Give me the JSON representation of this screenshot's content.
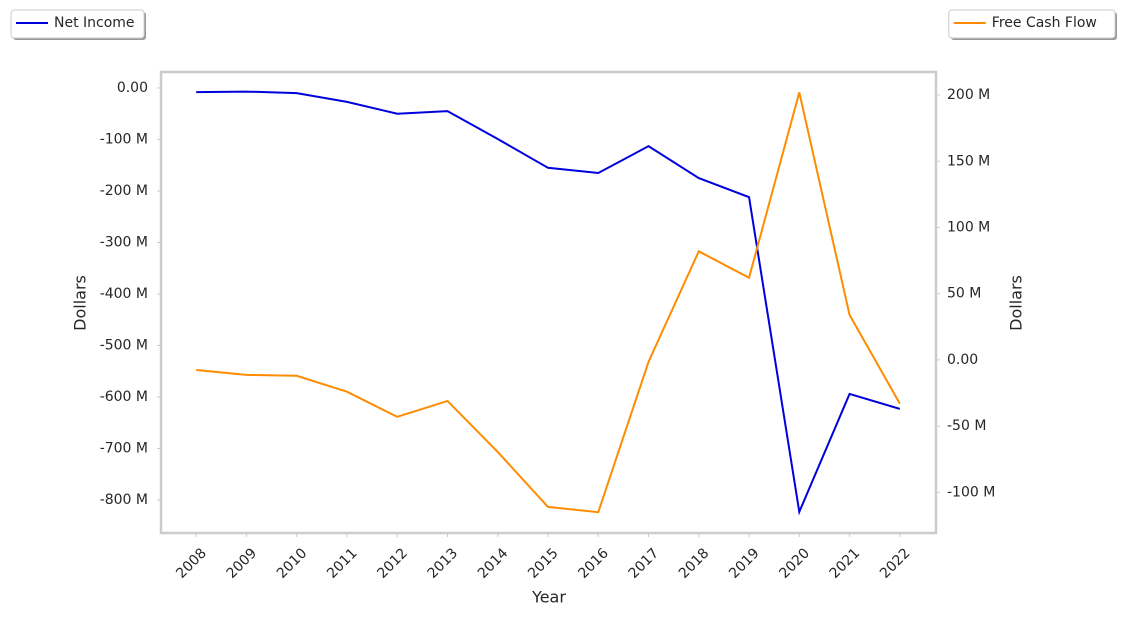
{
  "chart_data": {
    "type": "line",
    "x_label": "Year",
    "y_label": "Dollars",
    "y2_label": "Dollars",
    "x": [
      2008,
      2009,
      2010,
      2011,
      2012,
      2013,
      2014,
      2015,
      2016,
      2017,
      2018,
      2019,
      2020,
      2021,
      2022
    ],
    "xlim": [
      2007.3,
      2022.72
    ],
    "xticks": [
      2008,
      2009,
      2010,
      2011,
      2012,
      2013,
      2014,
      2015,
      2016,
      2017,
      2018,
      2019,
      2020,
      2021,
      2022
    ],
    "ylim": [
      -864000000,
      31000000
    ],
    "yticks": [
      {
        "value": 0,
        "label": "0.00"
      },
      {
        "value": -100000000,
        "label": "-100 M"
      },
      {
        "value": -200000000,
        "label": "-200 M"
      },
      {
        "value": -300000000,
        "label": "-300 M"
      },
      {
        "value": -400000000,
        "label": "-400 M"
      },
      {
        "value": -500000000,
        "label": "-500 M"
      },
      {
        "value": -600000000,
        "label": "-600 M"
      },
      {
        "value": -700000000,
        "label": "-700 M"
      },
      {
        "value": -800000000,
        "label": "-800 M"
      }
    ],
    "y2lim": [
      -130700000,
      217400000
    ],
    "y2ticks": [
      {
        "value": 200000000,
        "label": "200 M"
      },
      {
        "value": 150000000,
        "label": "150 M"
      },
      {
        "value": 100000000,
        "label": "100 M"
      },
      {
        "value": 50000000,
        "label": "50 M"
      },
      {
        "value": 0,
        "label": "0.00"
      },
      {
        "value": -50000000,
        "label": "-50 M"
      },
      {
        "value": -100000000,
        "label": "-100 M"
      }
    ],
    "series": [
      {
        "name": "Net Income",
        "color": "#0000dd",
        "legend": "upper left",
        "values": [
          -8000000,
          -7000000,
          -10000000,
          -27000000,
          -50000000,
          -45000000,
          -99000000,
          -155000000,
          -165000000,
          -113000000,
          -175000000,
          -212000000,
          -823000000,
          -594000000,
          -623000000
        ]
      },
      {
        "name": "Free Cash Flow",
        "color": "#ff8c00",
        "legend": "upper right",
        "axis": "y2",
        "values": [
          -7600000,
          -11300000,
          -12000000,
          -24000000,
          -43000000,
          -31000000,
          -69500000,
          -111000000,
          -115000000,
          -1500000,
          82000000,
          62000000,
          202000000,
          34000000,
          -33000000
        ]
      }
    ]
  }
}
